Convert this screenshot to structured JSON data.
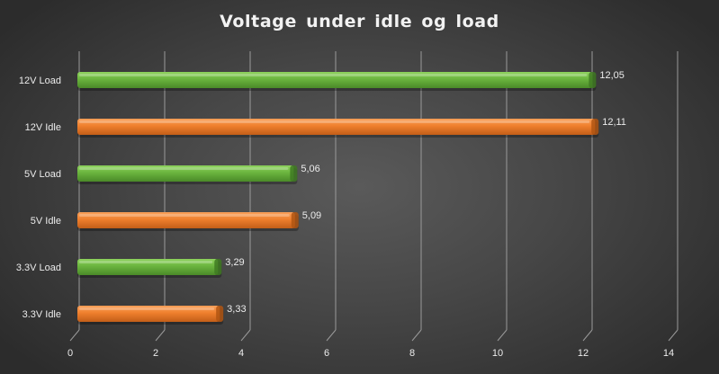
{
  "chart_data": {
    "type": "bar",
    "orientation": "horizontal",
    "title": "Voltage  under  idle  og  load",
    "categories": [
      "12V Load",
      "12V Idle",
      "5V Load",
      "5V Idle",
      "3.3V Load",
      "3.3V Idle"
    ],
    "values": [
      12.05,
      12.11,
      5.06,
      5.09,
      3.29,
      3.33
    ],
    "value_labels": [
      "12,05",
      "12,11",
      "5,06",
      "5,09",
      "3,29",
      "3,33"
    ],
    "bar_colors": [
      "#6ab43e",
      "#ef7f2d",
      "#6ab43e",
      "#ef7f2d",
      "#6ab43e",
      "#ef7f2d"
    ],
    "xlim": [
      0,
      14
    ],
    "xticks": [
      0,
      2,
      4,
      6,
      8,
      10,
      12,
      14
    ],
    "xlabel": "",
    "ylabel": "",
    "grid": "vertical",
    "legend": "none",
    "style": "3d"
  },
  "colors": {
    "background": "#444444",
    "load": "#6ab43e",
    "idle": "#ef7f2d",
    "gridline": "#9a9a9a",
    "text": "#ececec"
  }
}
